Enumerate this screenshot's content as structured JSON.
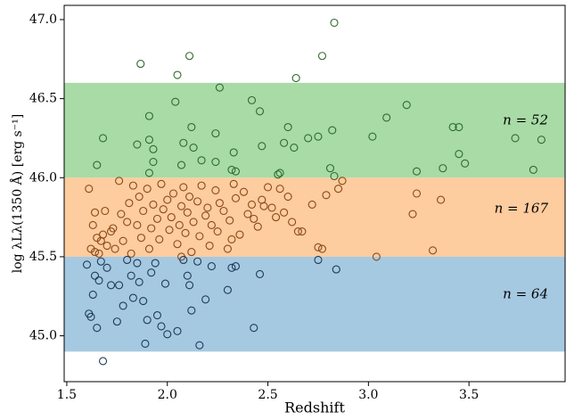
{
  "chart_data": {
    "type": "scatter",
    "x_label": "Redshift",
    "y_label": "log λLλ(1350 Å) [erg s⁻¹]",
    "xlim": [
      1.487,
      3.978
    ],
    "ylim": [
      44.71,
      47.09
    ],
    "xticks": [
      {
        "value": 1.5,
        "label": "1.5"
      },
      {
        "value": 2,
        "label": "2.0"
      },
      {
        "value": 2.5,
        "label": "2.5"
      },
      {
        "value": 3,
        "label": "3.0"
      },
      {
        "value": 3.5,
        "label": "3.5"
      }
    ],
    "yticks": [
      {
        "value": 45,
        "label": "45.0"
      },
      45.5,
      {
        "value": 46,
        "label": "46.0"
      },
      46.5,
      {
        "value": 47,
        "label": "47.0"
      }
    ],
    "bands": [
      {
        "ymin": 46.0,
        "ymax": 46.6,
        "color": "#a8dba6",
        "label": "n = 52"
      },
      {
        "ymin": 45.5,
        "ymax": 46.0,
        "color": "#fdcc9f",
        "label": "n = 167"
      },
      {
        "ymin": 44.9,
        "ymax": 45.5,
        "color": "#a6c9e2",
        "label": "n = 64"
      }
    ],
    "series": [
      {
        "color": "#2f6b2f",
        "x": [
          1.867,
          2.05,
          2.11,
          2.77,
          2.83,
          2.64,
          2.26,
          2.04,
          2.42,
          2.46,
          3.19,
          3.09,
          3.73,
          3.86,
          3.82,
          3.45,
          3.42,
          1.91,
          1.68,
          2.12,
          1.85,
          1.91,
          1.93,
          1.93,
          2.08,
          2.13,
          2.17,
          2.24,
          2.24,
          2.33,
          2.32,
          2.34,
          2.47,
          2.6,
          2.58,
          2.63,
          2.7,
          2.75,
          2.82,
          2.81,
          2.83,
          3.02,
          3.24,
          3.37,
          3.45,
          3.48,
          1.65,
          2.55,
          2.56,
          2.07,
          1.91
        ],
        "values": [
          46.72,
          46.65,
          46.77,
          46.77,
          46.98,
          46.63,
          46.57,
          46.48,
          46.49,
          46.42,
          46.46,
          46.38,
          46.25,
          46.24,
          46.05,
          46.32,
          46.32,
          46.39,
          46.25,
          46.32,
          46.21,
          46.24,
          46.18,
          46.1,
          46.22,
          46.19,
          46.11,
          46.1,
          46.28,
          46.16,
          46.05,
          46.04,
          46.2,
          46.32,
          46.22,
          46.19,
          46.25,
          46.26,
          46.3,
          46.06,
          46.01,
          46.26,
          46.04,
          46.06,
          46.15,
          46.09,
          46.08,
          46.02,
          46.03,
          46.08,
          46.03
        ]
      },
      {
        "color": "#8b4a16",
        "x": [
          1.61,
          1.62,
          1.63,
          1.64,
          1.65,
          1.66,
          1.67,
          1.68,
          1.69,
          1.7,
          1.72,
          1.73,
          1.74,
          1.76,
          1.77,
          1.78,
          1.8,
          1.81,
          1.82,
          1.83,
          1.85,
          1.86,
          1.87,
          1.88,
          1.9,
          1.91,
          1.92,
          1.93,
          1.95,
          1.96,
          1.97,
          1.98,
          2.0,
          2.01,
          2.02,
          2.03,
          2.05,
          2.06,
          2.07,
          2.08,
          2.09,
          2.1,
          2.11,
          2.12,
          2.13,
          2.15,
          2.16,
          2.17,
          2.19,
          2.2,
          2.21,
          2.22,
          2.24,
          2.25,
          2.26,
          2.28,
          2.3,
          2.31,
          2.32,
          2.33,
          2.34,
          2.36,
          2.38,
          2.4,
          2.42,
          2.43,
          2.45,
          2.47,
          2.48,
          2.5,
          2.52,
          2.54,
          2.56,
          2.58,
          2.6,
          2.62,
          2.65,
          2.67,
          2.72,
          2.75,
          2.77,
          2.79,
          2.85,
          2.87,
          3.04,
          3.22,
          3.24,
          3.32,
          3.36,
          2.07,
          1.64
        ],
        "values": [
          45.93,
          45.55,
          45.7,
          45.78,
          45.62,
          45.52,
          45.6,
          45.64,
          45.79,
          45.57,
          45.66,
          45.68,
          45.55,
          45.98,
          45.77,
          45.6,
          45.72,
          45.84,
          45.52,
          45.95,
          45.7,
          45.88,
          45.62,
          45.79,
          45.93,
          45.55,
          45.68,
          45.83,
          45.74,
          45.61,
          45.96,
          45.8,
          45.86,
          45.67,
          45.75,
          45.9,
          45.58,
          45.7,
          45.82,
          45.94,
          45.65,
          45.78,
          45.88,
          45.53,
          45.72,
          45.85,
          45.63,
          45.95,
          45.76,
          45.81,
          45.57,
          45.7,
          45.92,
          45.66,
          45.84,
          45.79,
          45.55,
          45.73,
          45.61,
          45.96,
          45.87,
          45.64,
          45.91,
          45.77,
          45.83,
          45.74,
          45.69,
          45.86,
          45.82,
          45.94,
          45.81,
          45.75,
          45.93,
          45.78,
          45.88,
          45.72,
          45.66,
          45.66,
          45.83,
          45.56,
          45.55,
          45.89,
          45.93,
          45.98,
          45.5,
          45.77,
          45.9,
          45.54,
          45.86,
          45.5,
          45.53
        ]
      },
      {
        "color": "#1f3a56",
        "x": [
          1.6,
          1.61,
          1.62,
          1.63,
          1.64,
          1.65,
          1.66,
          1.67,
          1.68,
          1.7,
          1.72,
          1.75,
          1.76,
          1.78,
          1.8,
          1.82,
          1.83,
          1.85,
          1.86,
          1.88,
          1.89,
          1.9,
          1.92,
          1.94,
          1.95,
          1.97,
          1.99,
          2.0,
          2.05,
          2.08,
          2.1,
          2.11,
          2.12,
          2.15,
          2.16,
          2.19,
          2.22,
          2.3,
          2.32,
          2.34,
          2.43,
          2.46,
          2.75,
          2.84
        ],
        "values": [
          45.45,
          45.14,
          45.12,
          45.26,
          45.38,
          45.05,
          45.35,
          45.47,
          44.84,
          45.43,
          45.32,
          45.09,
          45.32,
          45.19,
          45.48,
          45.38,
          45.24,
          45.46,
          45.34,
          45.22,
          44.95,
          45.1,
          45.4,
          45.46,
          45.13,
          45.06,
          45.33,
          45.01,
          45.03,
          45.48,
          45.38,
          45.32,
          45.16,
          45.47,
          44.94,
          45.23,
          45.44,
          45.29,
          45.43,
          45.44,
          45.05,
          45.39,
          45.48,
          45.42
        ]
      }
    ]
  }
}
